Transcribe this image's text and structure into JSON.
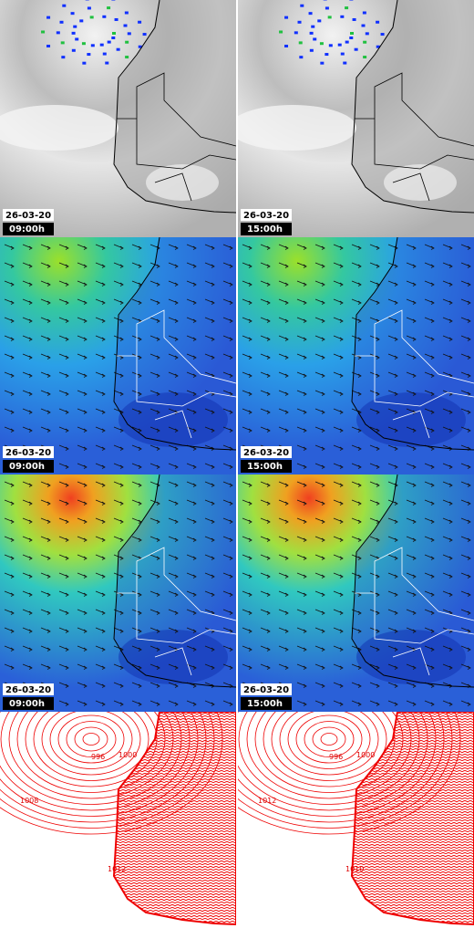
{
  "rows": [
    {
      "panels": [
        {
          "date": "26-03-20",
          "time": "09:00h"
        },
        {
          "date": "26-03-20",
          "time": "15:00h"
        }
      ]
    },
    {
      "panels": [
        {
          "date": "26-03-20",
          "time": "09:00h"
        },
        {
          "date": "26-03-20",
          "time": "15:00h"
        }
      ]
    },
    {
      "panels": [
        {
          "date": "26-03-20",
          "time": "09:00h"
        },
        {
          "date": "26-03-20",
          "time": "15:00h"
        }
      ]
    }
  ],
  "isobars": {
    "panels": [
      {
        "labels": [
          "996",
          "1000",
          "1008",
          "1012"
        ]
      },
      {
        "labels": [
          "996",
          "1000",
          "1012",
          "1010"
        ]
      }
    ]
  }
}
